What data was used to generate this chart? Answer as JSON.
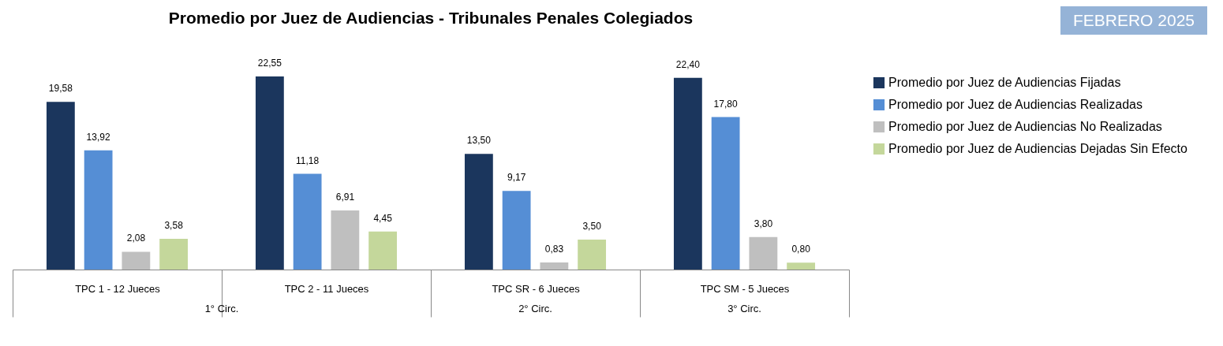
{
  "chart_data": {
    "type": "bar",
    "title": "Promedio por Juez de Audiencias - Tribunales Penales Colegiados",
    "subtitle": "FEBRERO 2025",
    "categories": [
      "TPC 1 - 12 Jueces",
      "TPC 2 - 11 Jueces",
      "TPC SR - 6 Jueces",
      "TPC SM - 5 Jueces"
    ],
    "series": [
      {
        "name": "Promedio por Juez de Audiencias Fijadas",
        "color": "#1b365d",
        "values": [
          19.58,
          22.55,
          13.5,
          22.4
        ],
        "value_labels": [
          "19,58",
          "22,55",
          "13,50",
          "22,40"
        ]
      },
      {
        "name": "Promedio por Juez de Audiencias Realizadas",
        "color": "#558ed5",
        "values": [
          13.92,
          11.18,
          9.17,
          17.8
        ],
        "value_labels": [
          "13,92",
          "11,18",
          "9,17",
          "17,80"
        ]
      },
      {
        "name": "Promedio por Juez de Audiencias No Realizadas",
        "color": "#bfbfbf",
        "values": [
          2.08,
          6.91,
          0.83,
          3.8
        ],
        "value_labels": [
          "2,08",
          "6,91",
          "0,83",
          "3,80"
        ]
      },
      {
        "name": "Promedio por Juez de Audiencias Dejadas Sin Efecto",
        "color": "#c4d79b",
        "values": [
          3.58,
          4.45,
          3.5,
          0.8
        ],
        "value_labels": [
          "3,58",
          "4,45",
          "3,50",
          "0,80"
        ]
      }
    ],
    "annotations": [
      "1° Circ.",
      "2° Circ.",
      "3° Circ."
    ],
    "legend": "right",
    "grid": false
  }
}
